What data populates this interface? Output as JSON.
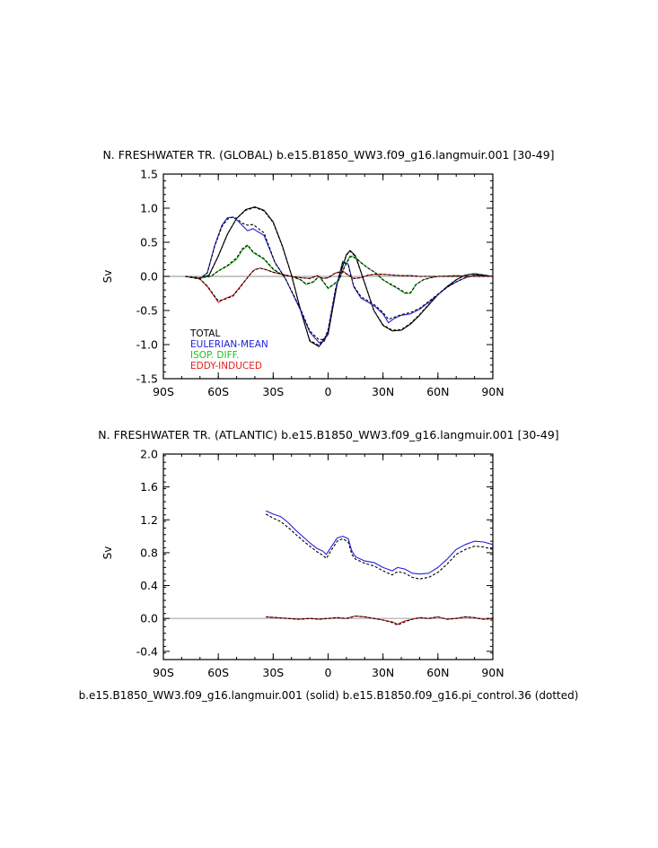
{
  "chart_data": [
    {
      "type": "line",
      "title": "N. FRESHWATER TR. (GLOBAL) b.e15.B1850_WW3.f09_g16.langmuir.001 [30-49]",
      "xlabel": "",
      "ylabel": "Sv",
      "xlim": [
        -90,
        90
      ],
      "ylim": [
        -1.5,
        1.5
      ],
      "x_ticks": [
        -90,
        -60,
        -30,
        0,
        30,
        60,
        90
      ],
      "x_tick_labels": [
        "90S",
        "60S",
        "30S",
        "0",
        "30N",
        "60N",
        "90N"
      ],
      "y_ticks": [
        -1.5,
        -1.0,
        -0.5,
        0.0,
        0.5,
        1.0,
        1.5
      ],
      "y_tick_labels": [
        "-1.5",
        "-1.0",
        "-0.5",
        "0.0",
        "0.5",
        "1.0",
        "1.5"
      ],
      "legend": [
        "TOTAL",
        "EULERIAN-MEAN",
        "ISOP. DIFF.",
        "EDDY-INDUCED"
      ],
      "legend_position": "bottom-left",
      "series": [
        {
          "name": "TOTAL (solid)",
          "color": "#000000",
          "dash": false,
          "x": [
            -78,
            -70,
            -65,
            -60,
            -55,
            -50,
            -45,
            -40,
            -35,
            -30,
            -25,
            -20,
            -15,
            -10,
            -5,
            0,
            5,
            10,
            12,
            15,
            20,
            25,
            30,
            35,
            40,
            45,
            50,
            55,
            60,
            65,
            70,
            75,
            80,
            85,
            90
          ],
          "y": [
            0.0,
            -0.03,
            0.02,
            0.3,
            0.62,
            0.85,
            0.98,
            1.02,
            0.97,
            0.8,
            0.45,
            0.02,
            -0.5,
            -0.95,
            -1.03,
            -0.85,
            -0.1,
            0.32,
            0.38,
            0.3,
            -0.1,
            -0.5,
            -0.72,
            -0.8,
            -0.79,
            -0.7,
            -0.57,
            -0.42,
            -0.27,
            -0.15,
            -0.05,
            0.02,
            0.04,
            0.02,
            0.0
          ]
        },
        {
          "name": "TOTAL (dotted)",
          "color": "#000000",
          "dash": true,
          "x": [
            -78,
            -70,
            -65,
            -60,
            -55,
            -50,
            -45,
            -40,
            -35,
            -30,
            -25,
            -20,
            -15,
            -10,
            -5,
            0,
            5,
            10,
            12,
            15,
            20,
            25,
            30,
            35,
            40,
            45,
            50,
            55,
            60,
            65,
            70,
            75,
            80,
            85,
            90
          ],
          "y": [
            0.0,
            -0.03,
            0.02,
            0.3,
            0.62,
            0.85,
            0.97,
            1.01,
            0.96,
            0.79,
            0.44,
            0.02,
            -0.5,
            -0.94,
            -1.01,
            -0.83,
            -0.1,
            0.31,
            0.37,
            0.29,
            -0.1,
            -0.5,
            -0.71,
            -0.79,
            -0.78,
            -0.69,
            -0.56,
            -0.41,
            -0.27,
            -0.15,
            -0.05,
            0.02,
            0.04,
            0.02,
            0.0
          ]
        },
        {
          "name": "EULERIAN-MEAN (solid)",
          "color": "#2020e0",
          "dash": false,
          "x": [
            -78,
            -70,
            -66,
            -62,
            -58,
            -55,
            -52,
            -50,
            -47,
            -44,
            -41,
            -38,
            -35,
            -32,
            -29,
            -26,
            -23,
            -20,
            -15,
            -10,
            -5,
            -2,
            0,
            4,
            8,
            11,
            14,
            18,
            22,
            26,
            30,
            33,
            36,
            40,
            45,
            50,
            55,
            60,
            65,
            70,
            75,
            80,
            85,
            90
          ],
          "y": [
            0.0,
            -0.03,
            0.05,
            0.45,
            0.75,
            0.86,
            0.87,
            0.83,
            0.75,
            0.67,
            0.7,
            0.65,
            0.6,
            0.4,
            0.2,
            0.08,
            -0.05,
            -0.22,
            -0.5,
            -0.82,
            -0.97,
            -0.95,
            -0.8,
            -0.2,
            0.22,
            0.18,
            -0.15,
            -0.32,
            -0.38,
            -0.45,
            -0.55,
            -0.68,
            -0.62,
            -0.57,
            -0.55,
            -0.48,
            -0.38,
            -0.27,
            -0.16,
            -0.08,
            -0.02,
            0.02,
            0.01,
            0.0
          ]
        },
        {
          "name": "EULERIAN-MEAN (dotted)",
          "color": "#000000",
          "dash": true,
          "x": [
            -78,
            -70,
            -66,
            -62,
            -58,
            -55,
            -52,
            -50,
            -47,
            -44,
            -41,
            -38,
            -35,
            -32,
            -29,
            -26,
            -23,
            -20,
            -15,
            -10,
            -5,
            -2,
            0,
            4,
            8,
            11,
            14,
            18,
            22,
            26,
            30,
            33,
            36,
            40,
            45,
            50,
            55,
            60,
            65,
            70,
            75,
            80,
            85,
            90
          ],
          "y": [
            0.0,
            -0.03,
            0.05,
            0.44,
            0.73,
            0.84,
            0.87,
            0.85,
            0.78,
            0.75,
            0.76,
            0.7,
            0.64,
            0.42,
            0.2,
            0.08,
            -0.05,
            -0.21,
            -0.48,
            -0.8,
            -0.93,
            -0.92,
            -0.78,
            -0.19,
            0.21,
            0.17,
            -0.14,
            -0.3,
            -0.36,
            -0.43,
            -0.53,
            -0.63,
            -0.6,
            -0.56,
            -0.53,
            -0.47,
            -0.37,
            -0.26,
            -0.16,
            -0.08,
            -0.02,
            0.02,
            0.01,
            0.0
          ]
        },
        {
          "name": "ISOP. DIFF. (solid)",
          "color": "#20c020",
          "dash": false,
          "x": [
            -78,
            -70,
            -64,
            -60,
            -55,
            -50,
            -47,
            -44,
            -41,
            -38,
            -35,
            -30,
            -25,
            -20,
            -15,
            -12,
            -8,
            -5,
            -2,
            0,
            3,
            6,
            9,
            12,
            15,
            18,
            22,
            26,
            30,
            34,
            38,
            42,
            45,
            48,
            52,
            56,
            60,
            70,
            80,
            90
          ],
          "y": [
            0.0,
            -0.02,
            0.0,
            0.08,
            0.15,
            0.25,
            0.38,
            0.45,
            0.35,
            0.3,
            0.25,
            0.1,
            0.02,
            0.0,
            -0.05,
            -0.12,
            -0.08,
            0.0,
            -0.1,
            -0.18,
            -0.12,
            -0.05,
            0.15,
            0.3,
            0.28,
            0.2,
            0.12,
            0.05,
            -0.05,
            -0.12,
            -0.18,
            -0.25,
            -0.25,
            -0.12,
            -0.05,
            -0.02,
            0.0,
            0.01,
            0.0,
            0.0
          ]
        },
        {
          "name": "ISOP. DIFF. (dotted)",
          "color": "#000000",
          "dash": true,
          "x": [
            -78,
            -70,
            -64,
            -60,
            -55,
            -50,
            -47,
            -44,
            -41,
            -38,
            -35,
            -30,
            -25,
            -20,
            -15,
            -12,
            -8,
            -5,
            -2,
            0,
            3,
            6,
            9,
            12,
            15,
            18,
            22,
            26,
            30,
            34,
            38,
            42,
            45,
            48,
            52,
            56,
            60,
            70,
            80,
            90
          ],
          "y": [
            0.0,
            -0.02,
            0.0,
            0.08,
            0.16,
            0.27,
            0.4,
            0.46,
            0.36,
            0.31,
            0.26,
            0.11,
            0.02,
            0.0,
            -0.05,
            -0.11,
            -0.08,
            0.0,
            -0.1,
            -0.17,
            -0.12,
            -0.05,
            0.14,
            0.29,
            0.27,
            0.2,
            0.12,
            0.05,
            -0.05,
            -0.11,
            -0.17,
            -0.24,
            -0.24,
            -0.12,
            -0.05,
            -0.02,
            0.0,
            0.01,
            0.0,
            0.0
          ]
        },
        {
          "name": "EDDY-INDUCED (solid)",
          "color": "#e02020",
          "dash": false,
          "x": [
            -78,
            -70,
            -66,
            -62,
            -60,
            -56,
            -52,
            -48,
            -45,
            -42,
            -40,
            -37,
            -34,
            -30,
            -25,
            -20,
            -15,
            -10,
            -6,
            -3,
            0,
            4,
            8,
            11,
            14,
            18,
            22,
            26,
            30,
            35,
            40,
            45,
            50,
            60,
            70,
            80,
            90
          ],
          "y": [
            0.0,
            -0.04,
            -0.15,
            -0.3,
            -0.38,
            -0.32,
            -0.28,
            -0.15,
            -0.05,
            0.05,
            0.1,
            0.12,
            0.1,
            0.06,
            0.03,
            0.0,
            -0.02,
            -0.03,
            0.01,
            -0.03,
            -0.02,
            0.05,
            0.08,
            0.02,
            -0.03,
            -0.02,
            0.02,
            0.03,
            0.03,
            0.02,
            0.01,
            0.01,
            0.0,
            0.0,
            0.0,
            0.0,
            0.0
          ]
        },
        {
          "name": "EDDY-INDUCED (dotted)",
          "color": "#000000",
          "dash": true,
          "x": [
            -78,
            -70,
            -66,
            -62,
            -60,
            -56,
            -52,
            -48,
            -45,
            -42,
            -40,
            -37,
            -34,
            -30,
            -25,
            -20,
            -15,
            -10,
            -6,
            -3,
            0,
            4,
            8,
            11,
            14,
            18,
            22,
            26,
            30,
            35,
            40,
            45,
            50,
            60,
            70,
            80,
            90
          ],
          "y": [
            0.0,
            -0.04,
            -0.14,
            -0.29,
            -0.36,
            -0.33,
            -0.29,
            -0.16,
            -0.05,
            0.05,
            0.1,
            0.12,
            0.1,
            0.06,
            0.03,
            0.0,
            -0.02,
            -0.03,
            0.01,
            -0.03,
            -0.02,
            0.05,
            0.07,
            0.02,
            -0.03,
            -0.02,
            0.02,
            0.03,
            0.03,
            0.02,
            0.01,
            0.01,
            0.0,
            0.0,
            0.0,
            0.0,
            0.0
          ]
        }
      ]
    },
    {
      "type": "line",
      "title": "N. FRESHWATER TR. (ATLANTIC) b.e15.B1850_WW3.f09_g16.langmuir.001 [30-49]",
      "xlabel": "b.e15.B1850_WW3.f09_g16.langmuir.001 (solid) b.e15.B1850.f09_g16.pi_control.36 (dotted)",
      "ylabel": "Sv",
      "xlim": [
        -90,
        90
      ],
      "ylim": [
        -0.5,
        2.0
      ],
      "x_ticks": [
        -90,
        -60,
        -30,
        0,
        30,
        60,
        90
      ],
      "x_tick_labels": [
        "90S",
        "60S",
        "30S",
        "0",
        "30N",
        "60N",
        "90N"
      ],
      "y_ticks": [
        -0.4,
        0.0,
        0.4,
        0.8,
        1.2,
        1.6,
        2.0
      ],
      "y_tick_labels": [
        "-0.4",
        "0.0",
        "0.4",
        "0.8",
        "1.2",
        "1.6",
        "2.0"
      ],
      "series": [
        {
          "name": "EULERIAN-MEAN (solid)",
          "color": "#2020e0",
          "dash": false,
          "x": [
            -34,
            -30,
            -26,
            -22,
            -18,
            -14,
            -10,
            -6,
            -3,
            -1,
            2,
            5,
            8,
            11,
            13,
            15,
            20,
            25,
            30,
            35,
            38,
            42,
            46,
            50,
            55,
            60,
            65,
            70,
            75,
            80,
            85,
            90
          ],
          "y": [
            1.31,
            1.27,
            1.24,
            1.17,
            1.08,
            1.0,
            0.92,
            0.85,
            0.82,
            0.78,
            0.88,
            0.98,
            1.0,
            0.97,
            0.82,
            0.75,
            0.7,
            0.68,
            0.62,
            0.58,
            0.62,
            0.6,
            0.55,
            0.54,
            0.55,
            0.62,
            0.72,
            0.84,
            0.9,
            0.94,
            0.93,
            0.9
          ]
        },
        {
          "name": "EULERIAN-MEAN (dotted)",
          "color": "#000000",
          "dash": true,
          "x": [
            -34,
            -30,
            -26,
            -22,
            -18,
            -14,
            -10,
            -6,
            -3,
            -1,
            2,
            5,
            8,
            11,
            13,
            15,
            20,
            25,
            30,
            35,
            38,
            42,
            46,
            50,
            55,
            60,
            65,
            70,
            75,
            80,
            85,
            90
          ],
          "y": [
            1.27,
            1.22,
            1.18,
            1.11,
            1.03,
            0.95,
            0.88,
            0.81,
            0.77,
            0.73,
            0.84,
            0.94,
            0.97,
            0.93,
            0.78,
            0.72,
            0.67,
            0.64,
            0.58,
            0.53,
            0.57,
            0.55,
            0.5,
            0.48,
            0.5,
            0.56,
            0.66,
            0.78,
            0.84,
            0.88,
            0.87,
            0.84
          ]
        },
        {
          "name": "EDDY-INDUCED (solid)",
          "color": "#e02020",
          "dash": false,
          "x": [
            -34,
            -28,
            -22,
            -16,
            -10,
            -5,
            0,
            5,
            10,
            15,
            20,
            25,
            30,
            35,
            38,
            42,
            46,
            50,
            55,
            60,
            65,
            70,
            75,
            80,
            85,
            90
          ],
          "y": [
            0.02,
            0.01,
            0.0,
            -0.01,
            0.0,
            -0.01,
            0.0,
            0.01,
            0.0,
            0.03,
            0.02,
            0.0,
            -0.02,
            -0.04,
            -0.07,
            -0.03,
            -0.01,
            0.01,
            0.0,
            0.02,
            -0.01,
            0.0,
            0.02,
            0.01,
            -0.01,
            0.0
          ]
        },
        {
          "name": "EDDY-INDUCED (dotted)",
          "color": "#000000",
          "dash": true,
          "x": [
            -34,
            -28,
            -22,
            -16,
            -10,
            -5,
            0,
            5,
            10,
            15,
            20,
            25,
            30,
            35,
            38,
            42,
            46,
            50,
            55,
            60,
            65,
            70,
            75,
            80,
            85,
            90
          ],
          "y": [
            0.02,
            0.01,
            0.0,
            -0.01,
            0.0,
            -0.01,
            0.0,
            0.01,
            0.0,
            0.03,
            0.02,
            0.0,
            -0.02,
            -0.05,
            -0.08,
            -0.04,
            -0.01,
            0.01,
            0.0,
            0.02,
            -0.01,
            0.0,
            0.02,
            0.01,
            -0.01,
            0.0
          ]
        }
      ]
    }
  ]
}
